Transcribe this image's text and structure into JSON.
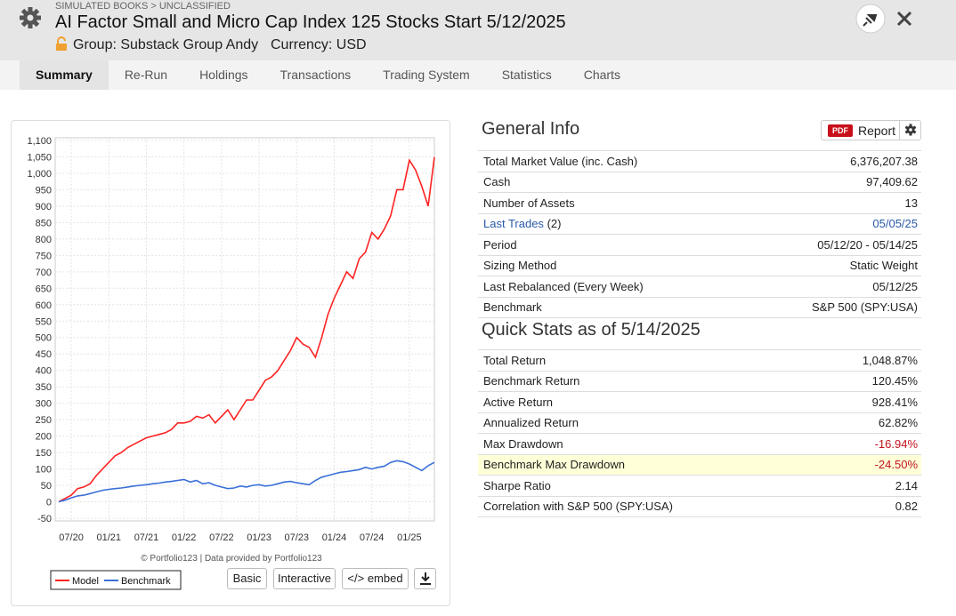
{
  "header": {
    "breadcrumb": "SIMULATED BOOKS > UNCLASSIFIED",
    "title": "AI Factor Small and Micro Cap Index 125 Stocks Start 5/12/2025",
    "group": "Group: Substack Group Andy",
    "currency": "Currency: USD"
  },
  "tabs": [
    "Summary",
    "Re-Run",
    "Holdings",
    "Transactions",
    "Trading System",
    "Statistics",
    "Charts"
  ],
  "chart_data": {
    "type": "line",
    "x": [
      "05/20",
      "06/20",
      "07/20",
      "08/20",
      "09/20",
      "10/20",
      "11/20",
      "12/20",
      "01/21",
      "02/21",
      "03/21",
      "04/21",
      "05/21",
      "06/21",
      "07/21",
      "08/21",
      "09/21",
      "10/21",
      "11/21",
      "12/21",
      "01/22",
      "02/22",
      "03/22",
      "04/22",
      "05/22",
      "06/22",
      "07/22",
      "08/22",
      "09/22",
      "10/22",
      "11/22",
      "12/22",
      "01/23",
      "02/23",
      "03/23",
      "04/23",
      "05/23",
      "06/23",
      "07/23",
      "08/23",
      "09/23",
      "10/23",
      "11/23",
      "12/23",
      "01/24",
      "02/24",
      "03/24",
      "04/24",
      "05/24",
      "06/24",
      "07/24",
      "08/24",
      "09/24",
      "10/24",
      "11/24",
      "12/24",
      "01/25",
      "02/25",
      "03/25",
      "04/25",
      "05/25"
    ],
    "series": [
      {
        "name": "Model",
        "color": "#ff2222",
        "values": [
          0,
          10,
          20,
          40,
          45,
          55,
          80,
          100,
          120,
          140,
          150,
          165,
          175,
          185,
          195,
          200,
          205,
          210,
          220,
          240,
          240,
          245,
          260,
          255,
          265,
          240,
          260,
          280,
          250,
          280,
          310,
          310,
          340,
          370,
          380,
          400,
          430,
          460,
          500,
          480,
          470,
          440,
          500,
          570,
          620,
          660,
          700,
          680,
          740,
          760,
          820,
          800,
          830,
          870,
          950,
          950,
          1040,
          1010,
          960,
          900,
          1049
        ]
      },
      {
        "name": "Benchmark",
        "color": "#3a6fd8",
        "values": [
          0,
          5,
          12,
          18,
          20,
          25,
          30,
          35,
          38,
          40,
          42,
          45,
          48,
          50,
          52,
          55,
          57,
          60,
          62,
          65,
          68,
          60,
          65,
          55,
          58,
          50,
          45,
          40,
          42,
          48,
          45,
          50,
          52,
          48,
          50,
          55,
          60,
          62,
          58,
          55,
          52,
          65,
          75,
          80,
          85,
          90,
          92,
          95,
          98,
          105,
          100,
          105,
          108,
          120,
          125,
          122,
          115,
          105,
          95,
          110,
          120
        ]
      }
    ],
    "ylim": [
      -50,
      1100
    ],
    "yticks": [
      -50,
      0,
      50,
      100,
      150,
      200,
      250,
      300,
      350,
      400,
      450,
      500,
      550,
      600,
      650,
      700,
      750,
      800,
      850,
      900,
      950,
      {
        "value": 1000,
        "label": "1,000"
      },
      {
        "value": 1050,
        "label": "1,050"
      },
      {
        "value": 1100,
        "label": "1,100"
      }
    ],
    "xticks": [
      "07/20",
      "01/21",
      "07/21",
      "01/22",
      "07/22",
      "01/23",
      "07/23",
      "01/24",
      "07/24",
      "01/25"
    ],
    "grid": true,
    "credit": "© Portfolio123 | Data provided by Portfolio123"
  },
  "chart_buttons": [
    "Basic",
    "Interactive",
    "</> embed"
  ],
  "general_info": {
    "title": "General Info",
    "pdf": "PDF",
    "report": "Report",
    "rows": [
      {
        "label": "Total Market Value (inc. Cash)",
        "value": "6,376,207.38"
      },
      {
        "label": "Cash",
        "value": "97,409.62"
      },
      {
        "label": "Number of Assets",
        "value": "13"
      },
      {
        "label": "Last Trades",
        "count": "(2)",
        "value": "05/05/25"
      },
      {
        "label": "Period",
        "value": "05/12/20 - 05/14/25"
      },
      {
        "label": "Sizing Method",
        "value": "Static Weight"
      },
      {
        "label": "Last Rebalanced (Every Week)",
        "value": "05/12/25"
      },
      {
        "label": "Benchmark",
        "value": "S&P 500 (SPY:USA)"
      }
    ]
  },
  "quick_stats": {
    "title": "Quick Stats as of 5/14/2025",
    "rows": [
      {
        "label": "Total Return",
        "value": "1,048.87%"
      },
      {
        "label": "Benchmark Return",
        "value": "120.45%"
      },
      {
        "label": "Active Return",
        "value": "928.41%"
      },
      {
        "label": "Annualized Return",
        "value": "62.82%"
      },
      {
        "label": "Max Drawdown",
        "value": "-16.94%"
      },
      {
        "label": "Benchmark Max Drawdown",
        "value": "-24.50%"
      },
      {
        "label": "Sharpe Ratio",
        "value": "2.14"
      },
      {
        "label": "Correlation with S&P 500 (SPY:USA)",
        "value": "0.82"
      }
    ]
  }
}
